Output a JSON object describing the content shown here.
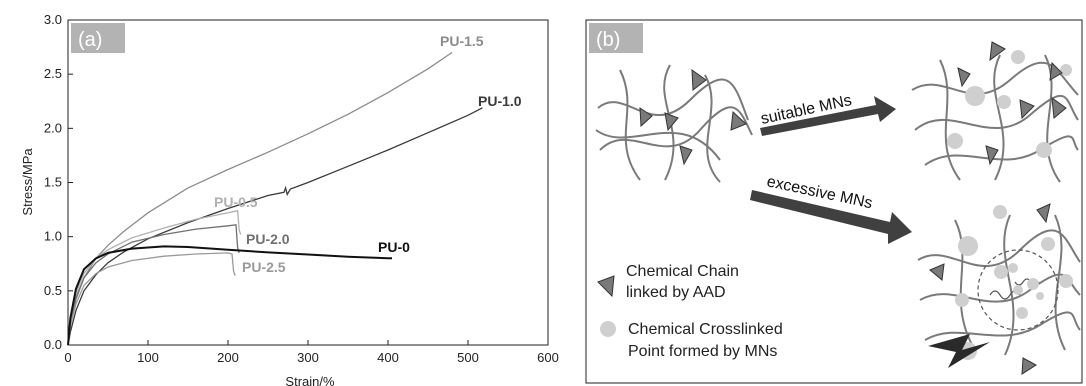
{
  "chart_data": {
    "type": "line",
    "panel_label": "(a)",
    "xlabel": "Strain/%",
    "ylabel": "Stress/MPa",
    "xlim": [
      0,
      600
    ],
    "ylim": [
      0,
      3.0
    ],
    "xticks": [
      0,
      100,
      200,
      300,
      400,
      500,
      600
    ],
    "yticks": [
      0.0,
      0.5,
      1.0,
      1.5,
      2.0,
      2.5,
      3.0
    ],
    "series": [
      {
        "name": "PU-1.5",
        "color": "#8c8c8c",
        "points": [
          [
            0,
            0
          ],
          [
            3,
            0.18
          ],
          [
            10,
            0.42
          ],
          [
            20,
            0.62
          ],
          [
            35,
            0.8
          ],
          [
            50,
            0.92
          ],
          [
            70,
            1.05
          ],
          [
            100,
            1.22
          ],
          [
            150,
            1.45
          ],
          [
            200,
            1.62
          ],
          [
            250,
            1.78
          ],
          [
            300,
            1.95
          ],
          [
            350,
            2.13
          ],
          [
            400,
            2.33
          ],
          [
            450,
            2.55
          ],
          [
            480,
            2.7
          ]
        ]
      },
      {
        "name": "PU-1.0",
        "color": "#3a3a3a",
        "points": [
          [
            0,
            0
          ],
          [
            3,
            0.12
          ],
          [
            10,
            0.32
          ],
          [
            20,
            0.5
          ],
          [
            35,
            0.65
          ],
          [
            50,
            0.76
          ],
          [
            70,
            0.86
          ],
          [
            100,
            0.98
          ],
          [
            150,
            1.13
          ],
          [
            200,
            1.26
          ],
          [
            250,
            1.38
          ],
          [
            270,
            1.41
          ],
          [
            272,
            1.45
          ],
          [
            274,
            1.39
          ],
          [
            278,
            1.44
          ],
          [
            300,
            1.5
          ],
          [
            350,
            1.65
          ],
          [
            400,
            1.8
          ],
          [
            450,
            1.96
          ],
          [
            500,
            2.12
          ],
          [
            518,
            2.19
          ]
        ]
      },
      {
        "name": "PU-0.5",
        "color": "#b0b0b0",
        "points": [
          [
            0,
            0
          ],
          [
            3,
            0.22
          ],
          [
            10,
            0.48
          ],
          [
            20,
            0.66
          ],
          [
            35,
            0.8
          ],
          [
            50,
            0.88
          ],
          [
            80,
            0.99
          ],
          [
            120,
            1.08
          ],
          [
            160,
            1.16
          ],
          [
            200,
            1.22
          ],
          [
            212,
            1.24
          ],
          [
            214,
            1.06
          ],
          [
            216,
            1.02
          ]
        ]
      },
      {
        "name": "PU-2.0",
        "color": "#707070",
        "points": [
          [
            0,
            0
          ],
          [
            3,
            0.2
          ],
          [
            10,
            0.44
          ],
          [
            20,
            0.62
          ],
          [
            35,
            0.76
          ],
          [
            50,
            0.84
          ],
          [
            80,
            0.95
          ],
          [
            120,
            1.02
          ],
          [
            160,
            1.07
          ],
          [
            200,
            1.1
          ],
          [
            210,
            1.11
          ],
          [
            212,
            0.9
          ],
          [
            214,
            0.85
          ]
        ]
      },
      {
        "name": "PU-2.5",
        "color": "#9a9a9a",
        "points": [
          [
            0,
            0
          ],
          [
            3,
            0.18
          ],
          [
            10,
            0.38
          ],
          [
            20,
            0.55
          ],
          [
            35,
            0.66
          ],
          [
            50,
            0.72
          ],
          [
            80,
            0.78
          ],
          [
            120,
            0.82
          ],
          [
            160,
            0.84
          ],
          [
            200,
            0.85
          ],
          [
            205,
            0.84
          ],
          [
            207,
            0.68
          ],
          [
            209,
            0.64
          ]
        ]
      },
      {
        "name": "PU-0",
        "color": "#111111",
        "points": [
          [
            0,
            0
          ],
          [
            3,
            0.25
          ],
          [
            10,
            0.52
          ],
          [
            20,
            0.7
          ],
          [
            35,
            0.8
          ],
          [
            50,
            0.85
          ],
          [
            80,
            0.89
          ],
          [
            120,
            0.91
          ],
          [
            150,
            0.905
          ],
          [
            200,
            0.88
          ],
          [
            250,
            0.855
          ],
          [
            300,
            0.835
          ],
          [
            350,
            0.815
          ],
          [
            400,
            0.8
          ],
          [
            405,
            0.8
          ]
        ]
      }
    ]
  },
  "schematic": {
    "panel_label": "(b)",
    "arrow_top_label": "suitable MNs",
    "arrow_bottom_label": "excessive MNs",
    "legend": {
      "triangle_line1": "Chemical Chain",
      "triangle_line2": "linked  by AAD",
      "circle_line1": "Chemical Crosslinked",
      "circle_line2": "Point formed by MNs"
    },
    "colors": {
      "chain": "#7a7a7a",
      "triangle": "#7a7a7a",
      "circle": "#cfcfcf",
      "arrow": "#404040",
      "tag_bg": "#b3b3b3"
    }
  }
}
